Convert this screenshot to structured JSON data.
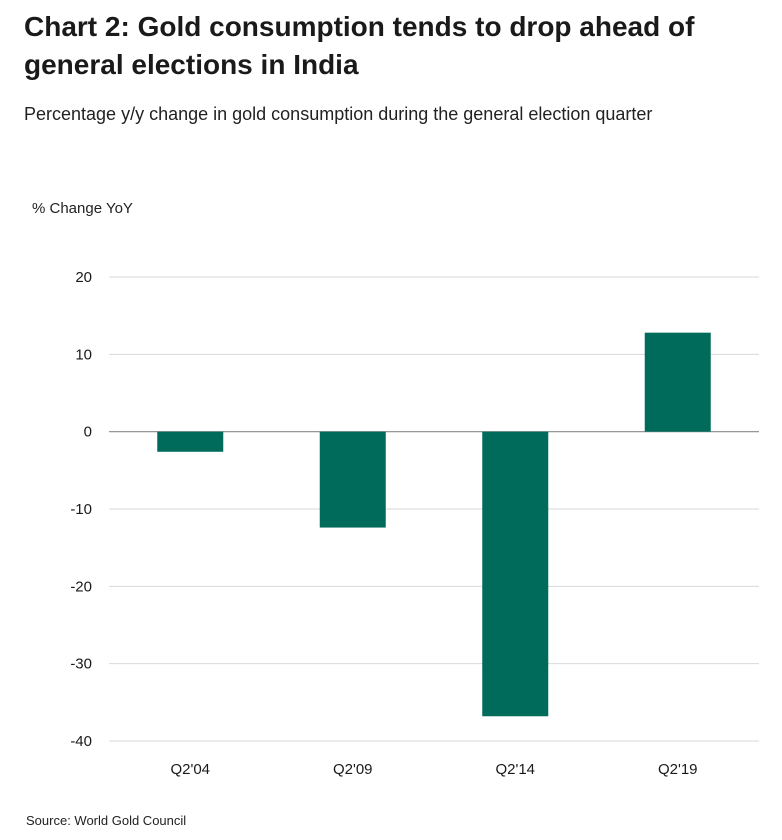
{
  "chart_data": {
    "type": "bar",
    "title": "Chart 2: Gold consumption tends to drop ahead of general elections in India",
    "subtitle": "Percentage y/y change in gold consumption during the general election quarter",
    "ylabel": "% Change YoY",
    "xlabel": "",
    "categories": [
      "Q2'04",
      "Q2'09",
      "Q2'14",
      "Q2'19"
    ],
    "values": [
      -2.6,
      -12.4,
      -36.8,
      12.8
    ],
    "ylim": [
      -40,
      20
    ],
    "yticks": [
      20,
      10,
      0,
      -10,
      -20,
      -30,
      -40
    ],
    "grid": true,
    "bar_color": "#006b5b",
    "source": "Source: World Gold Council"
  }
}
